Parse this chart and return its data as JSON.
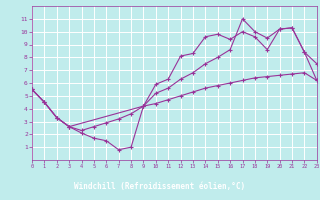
{
  "background_color": "#c0ecec",
  "line_color": "#993399",
  "grid_color": "#ffffff",
  "xlabel": "Windchill (Refroidissement éolien,°C)",
  "xlabel_bg": "#800080",
  "xlabel_fg": "#ffffff",
  "xlim": [
    0,
    23
  ],
  "ylim": [
    0,
    12
  ],
  "xticks": [
    0,
    1,
    2,
    3,
    4,
    5,
    6,
    7,
    8,
    9,
    10,
    11,
    12,
    13,
    14,
    15,
    16,
    17,
    18,
    19,
    20,
    21,
    22,
    23
  ],
  "yticks": [
    1,
    2,
    3,
    4,
    5,
    6,
    7,
    8,
    9,
    10,
    11
  ],
  "curve1_x": [
    0,
    1,
    2,
    3,
    4,
    5,
    6,
    7,
    8,
    9,
    10,
    11,
    12,
    13,
    14,
    15,
    16,
    17,
    18,
    19,
    20,
    21,
    22,
    23
  ],
  "curve1_y": [
    5.5,
    4.5,
    3.3,
    2.6,
    2.1,
    1.7,
    1.5,
    0.8,
    1.0,
    4.2,
    5.9,
    6.3,
    8.1,
    8.3,
    9.6,
    9.8,
    9.4,
    10.0,
    9.6,
    8.6,
    10.2,
    10.3,
    8.4,
    7.5
  ],
  "curve2_x": [
    0,
    1,
    2,
    3,
    9,
    10,
    11,
    12,
    13,
    14,
    15,
    16,
    17,
    18,
    19,
    20,
    21,
    22,
    23
  ],
  "curve2_y": [
    5.5,
    4.5,
    3.3,
    2.6,
    4.2,
    5.2,
    5.6,
    6.3,
    6.8,
    7.5,
    8.0,
    8.6,
    11.0,
    10.0,
    9.5,
    10.2,
    10.3,
    8.4,
    6.2
  ],
  "curve3_x": [
    0,
    1,
    2,
    3,
    4,
    5,
    6,
    7,
    8,
    9,
    10,
    11,
    12,
    13,
    14,
    15,
    16,
    17,
    18,
    19,
    20,
    21,
    22,
    23
  ],
  "curve3_y": [
    5.5,
    4.5,
    3.3,
    2.6,
    2.3,
    2.6,
    2.9,
    3.2,
    3.6,
    4.2,
    4.4,
    4.7,
    5.0,
    5.3,
    5.6,
    5.8,
    6.0,
    6.2,
    6.4,
    6.5,
    6.6,
    6.7,
    6.8,
    6.2
  ]
}
